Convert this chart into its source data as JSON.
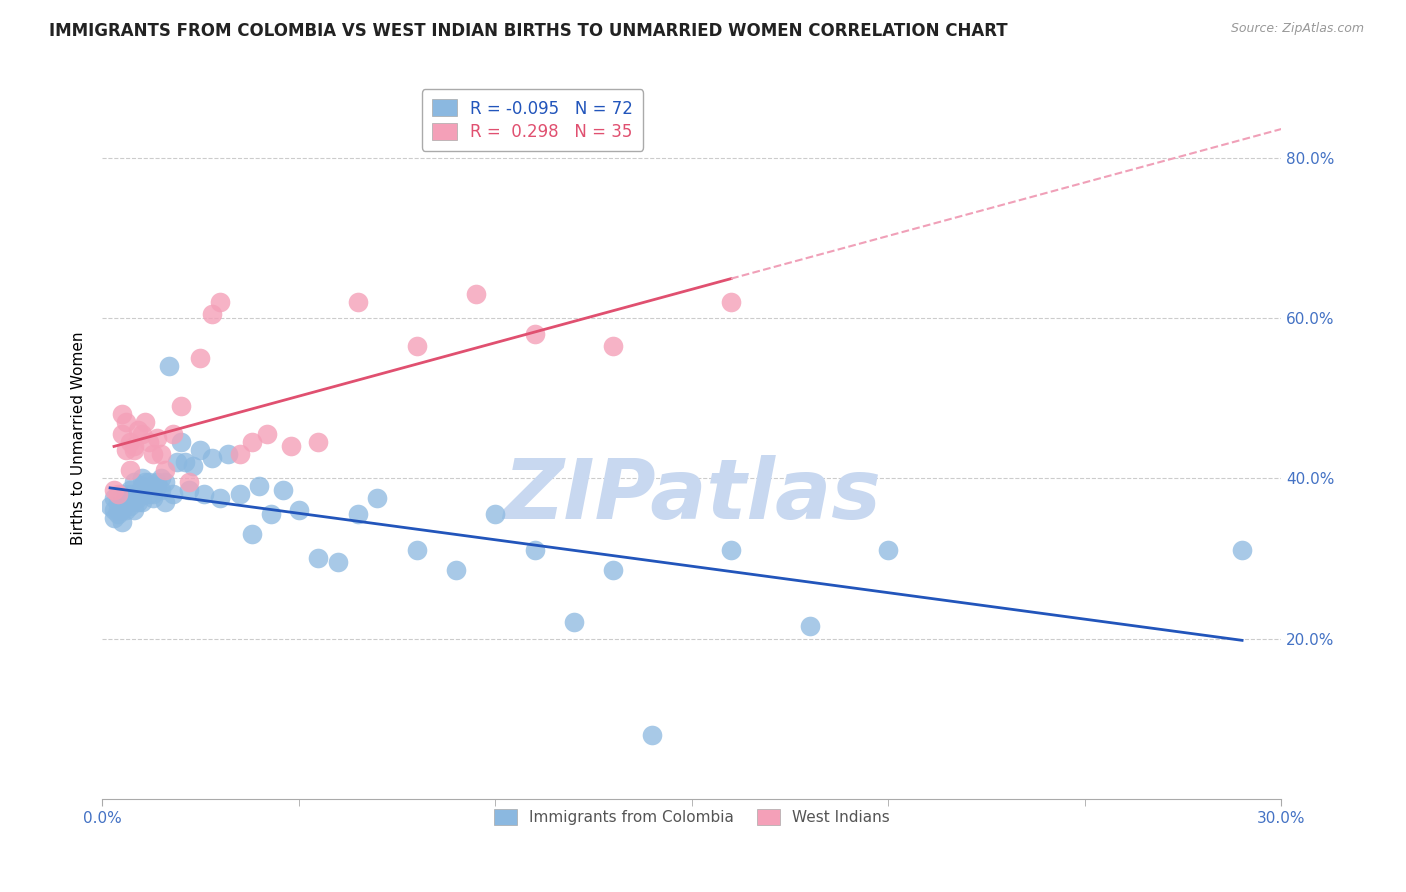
{
  "title": "IMMIGRANTS FROM COLOMBIA VS WEST INDIAN BIRTHS TO UNMARRIED WOMEN CORRELATION CHART",
  "source": "Source: ZipAtlas.com",
  "ylabel": "Births to Unmarried Women",
  "watermark": "ZIPatlas",
  "series1_label": "Immigrants from Colombia",
  "series2_label": "West Indians",
  "series1_color": "#8BB8E0",
  "series2_color": "#F4A0B8",
  "series1_line_color": "#2255BB",
  "series2_line_color": "#E05070",
  "series2_dash_color": "#F0A0B8",
  "legend_R1": "-0.095",
  "legend_N1": "72",
  "legend_R2": "0.298",
  "legend_N2": "35",
  "xlim": [
    0.0,
    0.3
  ],
  "ylim": [
    0.0,
    0.9
  ],
  "ytick_positions": [
    0.2,
    0.4,
    0.6,
    0.8
  ],
  "ytick_labels": [
    "20.0%",
    "40.0%",
    "60.0%",
    "80.0%"
  ],
  "colombia_x": [
    0.002,
    0.003,
    0.003,
    0.003,
    0.004,
    0.004,
    0.004,
    0.005,
    0.005,
    0.005,
    0.006,
    0.006,
    0.006,
    0.007,
    0.007,
    0.007,
    0.007,
    0.008,
    0.008,
    0.008,
    0.009,
    0.009,
    0.009,
    0.01,
    0.01,
    0.01,
    0.01,
    0.011,
    0.011,
    0.012,
    0.012,
    0.013,
    0.013,
    0.014,
    0.014,
    0.015,
    0.015,
    0.016,
    0.016,
    0.017,
    0.018,
    0.019,
    0.02,
    0.021,
    0.022,
    0.023,
    0.025,
    0.026,
    0.028,
    0.03,
    0.032,
    0.035,
    0.038,
    0.04,
    0.043,
    0.046,
    0.05,
    0.055,
    0.06,
    0.065,
    0.07,
    0.08,
    0.09,
    0.1,
    0.11,
    0.12,
    0.13,
    0.14,
    0.16,
    0.18,
    0.2,
    0.29
  ],
  "colombia_y": [
    0.365,
    0.375,
    0.35,
    0.36,
    0.37,
    0.355,
    0.36,
    0.38,
    0.345,
    0.36,
    0.375,
    0.36,
    0.37,
    0.38,
    0.365,
    0.385,
    0.37,
    0.375,
    0.36,
    0.395,
    0.375,
    0.38,
    0.37,
    0.39,
    0.38,
    0.37,
    0.4,
    0.385,
    0.395,
    0.38,
    0.395,
    0.375,
    0.38,
    0.39,
    0.395,
    0.4,
    0.385,
    0.395,
    0.37,
    0.54,
    0.38,
    0.42,
    0.445,
    0.42,
    0.385,
    0.415,
    0.435,
    0.38,
    0.425,
    0.375,
    0.43,
    0.38,
    0.33,
    0.39,
    0.355,
    0.385,
    0.36,
    0.3,
    0.295,
    0.355,
    0.375,
    0.31,
    0.285,
    0.355,
    0.31,
    0.22,
    0.285,
    0.08,
    0.31,
    0.215,
    0.31,
    0.31
  ],
  "westindian_x": [
    0.003,
    0.004,
    0.005,
    0.005,
    0.006,
    0.006,
    0.007,
    0.007,
    0.008,
    0.008,
    0.009,
    0.01,
    0.011,
    0.012,
    0.013,
    0.014,
    0.015,
    0.016,
    0.018,
    0.02,
    0.022,
    0.025,
    0.028,
    0.03,
    0.035,
    0.038,
    0.042,
    0.048,
    0.055,
    0.065,
    0.08,
    0.095,
    0.11,
    0.13,
    0.16
  ],
  "westindian_y": [
    0.385,
    0.38,
    0.455,
    0.48,
    0.435,
    0.47,
    0.445,
    0.41,
    0.435,
    0.44,
    0.46,
    0.455,
    0.47,
    0.445,
    0.43,
    0.45,
    0.43,
    0.41,
    0.455,
    0.49,
    0.395,
    0.55,
    0.605,
    0.62,
    0.43,
    0.445,
    0.455,
    0.44,
    0.445,
    0.62,
    0.565,
    0.63,
    0.58,
    0.565,
    0.62
  ],
  "background_color": "#ffffff",
  "grid_color": "#cccccc",
  "tick_color": "#4472c4",
  "title_fontsize": 12,
  "axis_label_fontsize": 11,
  "tick_fontsize": 11,
  "watermark_color": "#c8d8f0",
  "watermark_fontsize": 60
}
